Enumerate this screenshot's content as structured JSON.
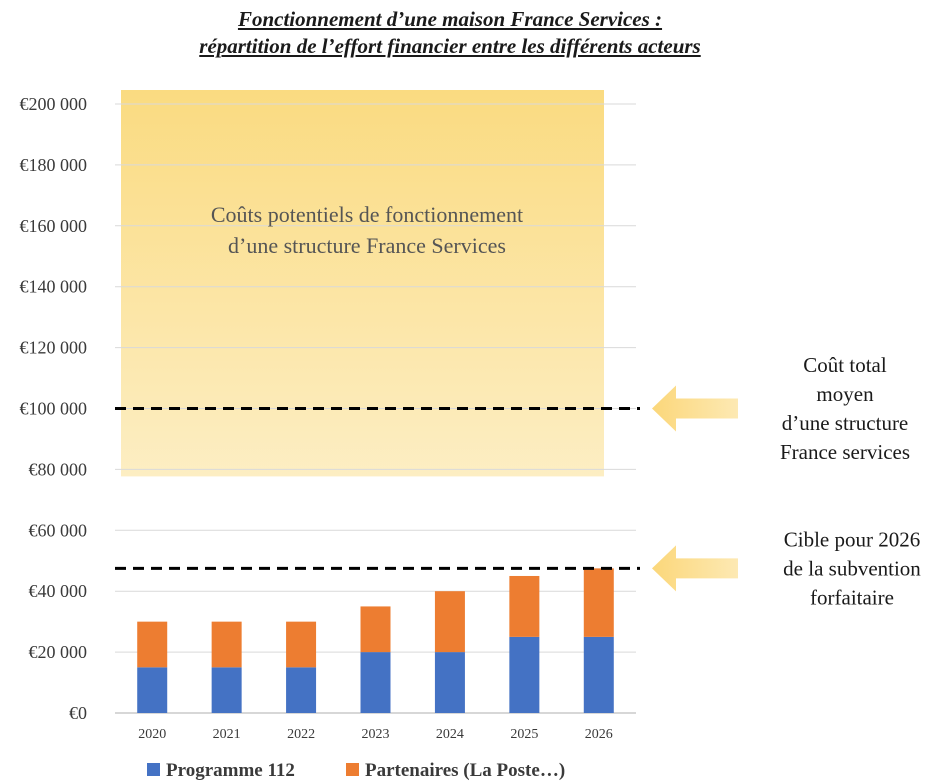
{
  "title_line1": "Fonctionnement d’une maison France Services :",
  "title_line2": "répartition de l’effort financier entre les différents acteurs",
  "chart_data": {
    "type": "bar",
    "stacked": true,
    "categories": [
      "2020",
      "2021",
      "2022",
      "2023",
      "2024",
      "2025",
      "2026"
    ],
    "series": [
      {
        "name": "Programme 112",
        "values": [
          15000,
          15000,
          15000,
          20000,
          20000,
          25000,
          25000
        ],
        "color": "#4472C4"
      },
      {
        "name": "Partenaires (La Poste…)",
        "values": [
          15000,
          15000,
          15000,
          15000,
          20000,
          20000,
          22500
        ],
        "color": "#ED7D31"
      }
    ],
    "ylim": [
      0,
      200000
    ],
    "y_ticks": [
      0,
      20000,
      40000,
      60000,
      80000,
      100000,
      120000,
      140000,
      160000,
      180000,
      200000
    ],
    "y_tick_labels": [
      "€0",
      "€20 000",
      "€40 000",
      "€60 000",
      "€80 000",
      "€100 000",
      "€120 000",
      "€140 000",
      "€160 000",
      "€180 000",
      "€200 000"
    ],
    "grid": true,
    "legend_position": "bottom",
    "shaded_zone": {
      "from": 80000,
      "to": 200000,
      "color": "#FAD97A",
      "label_line1": "Coûts potentiels de fonctionnement",
      "label_line2": "d’une structure France Services"
    },
    "reference_lines": [
      {
        "value": 100000,
        "label_lines": [
          "Coût total",
          "moyen",
          "d’une structure",
          "France services"
        ]
      },
      {
        "value": 47500,
        "label_lines": [
          "Cible pour 2026",
          "de la subvention",
          "forfaitaire"
        ]
      }
    ]
  }
}
